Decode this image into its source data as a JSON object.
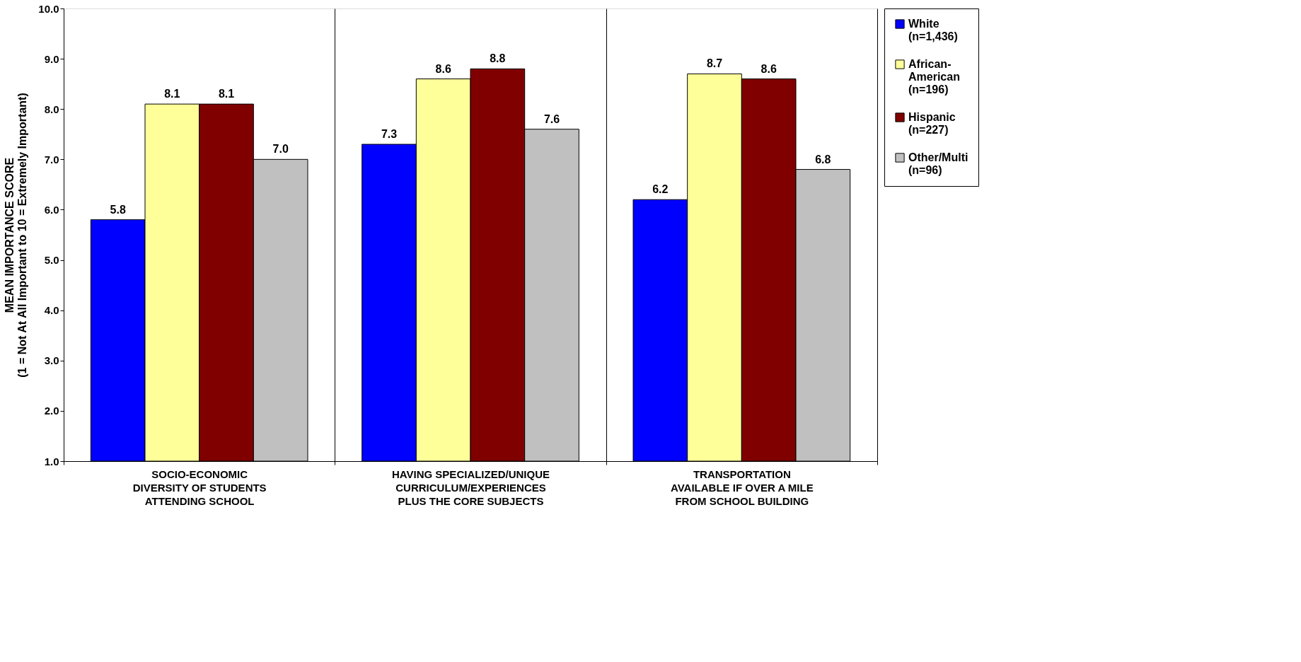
{
  "chart_data": {
    "type": "bar",
    "ylabel": "MEAN IMPORTANCE SCORE\n(1 = Not At All Important to 10 = Extremely Important)",
    "categories": [
      "SOCIO-ECONOMIC\nDIVERSITY OF STUDENTS\nATTENDING SCHOOL",
      "HAVING SPECIALIZED/UNIQUE\nCURRICULUM/EXPERIENCES\nPLUS THE CORE SUBJECTS",
      "TRANSPORTATION\nAVAILABLE IF OVER A MILE\nFROM SCHOOL BUILDING"
    ],
    "series": [
      {
        "name": "White\n(n=1,436)",
        "color": "#0000ff",
        "values": [
          5.8,
          7.3,
          6.2
        ],
        "value_labels": [
          "5.8",
          "7.3",
          "6.2"
        ]
      },
      {
        "name": "African-\nAmerican\n(n=196)",
        "color": "#ffff99",
        "values": [
          8.1,
          8.6,
          8.7
        ],
        "value_labels": [
          "8.1",
          "8.6",
          "8.7"
        ]
      },
      {
        "name": "Hispanic\n(n=227)",
        "color": "#800000",
        "values": [
          8.1,
          8.8,
          8.6
        ],
        "value_labels": [
          "8.1",
          "8.8",
          "8.6"
        ]
      },
      {
        "name": "Other/Multi\n(n=96)",
        "color": "#c0c0c0",
        "values": [
          7.0,
          7.6,
          6.8
        ],
        "value_labels": [
          "7.0",
          "7.6",
          "6.8"
        ]
      }
    ],
    "ylim": [
      1,
      10
    ],
    "yticks": [
      {
        "value": 1,
        "label": "1.0"
      },
      {
        "value": 2,
        "label": "2.0"
      },
      {
        "value": 3,
        "label": "3.0"
      },
      {
        "value": 4,
        "label": "4.0"
      },
      {
        "value": 5,
        "label": "5.0"
      },
      {
        "value": 6,
        "label": "6.0"
      },
      {
        "value": 7,
        "label": "7.0"
      },
      {
        "value": 8,
        "label": "8.0"
      },
      {
        "value": 9,
        "label": "9.0"
      },
      {
        "value": 10,
        "label": "10.0"
      }
    ],
    "grid": "x",
    "legend": "right"
  }
}
